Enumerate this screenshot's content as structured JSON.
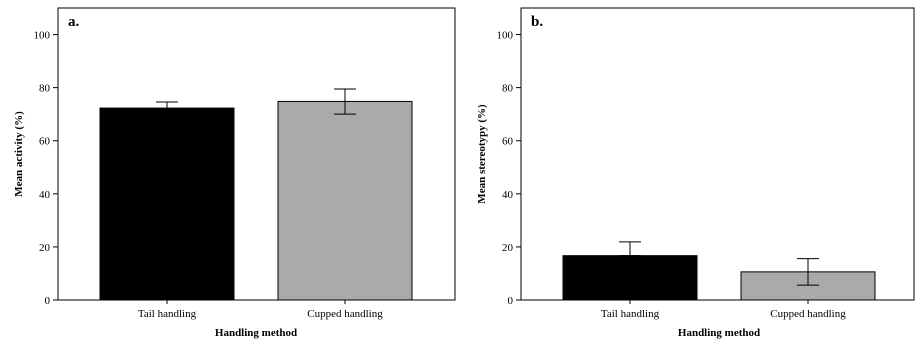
{
  "chart_data": [
    {
      "type": "bar",
      "panel_label": "a.",
      "categories": [
        "Tail handling",
        "Cupped handling"
      ],
      "values": [
        72.3,
        74.8
      ],
      "error_upper": [
        74.6,
        79.5
      ],
      "error_lower": [
        70.0,
        70.0
      ],
      "bar_colors": [
        "#000000",
        "#aaaaaa"
      ],
      "xlabel": "Handling method",
      "ylabel": "Mean activity (%)",
      "ylim": [
        0,
        110
      ],
      "yticks": [
        0,
        20,
        40,
        60,
        80,
        100
      ],
      "grid": false
    },
    {
      "type": "bar",
      "panel_label": "b.",
      "categories": [
        "Tail handling",
        "Cupped handling"
      ],
      "values": [
        16.7,
        10.6
      ],
      "error_upper": [
        21.9,
        15.6
      ],
      "error_lower": [
        16.7,
        5.6
      ],
      "bar_colors": [
        "#000000",
        "#aaaaaa"
      ],
      "xlabel": "Handling method",
      "ylabel": "Mean stereotypy (%)",
      "ylim": [
        0,
        110
      ],
      "yticks": [
        0,
        20,
        40,
        60,
        80,
        100
      ],
      "grid": false
    }
  ]
}
